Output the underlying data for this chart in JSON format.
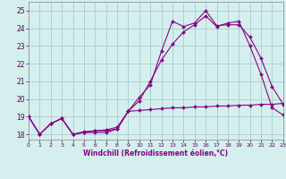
{
  "xlabel": "Windchill (Refroidissement éolien,°C)",
  "xlim": [
    0,
    23
  ],
  "ylim": [
    17.7,
    25.5
  ],
  "yticks": [
    18,
    19,
    20,
    21,
    22,
    23,
    24,
    25
  ],
  "xticks": [
    0,
    1,
    2,
    3,
    4,
    5,
    6,
    7,
    8,
    9,
    10,
    11,
    12,
    13,
    14,
    15,
    16,
    17,
    18,
    19,
    20,
    21,
    22,
    23
  ],
  "bg_color": "#d4efee",
  "grid_color": "#aacccc",
  "line_color": "#880088",
  "line1_x": [
    0,
    1,
    2,
    3,
    4,
    5,
    6,
    7,
    8,
    9,
    10,
    11,
    12,
    13,
    14,
    15,
    16,
    17,
    18,
    19,
    20,
    21,
    22,
    23
  ],
  "line1_y": [
    19.0,
    18.0,
    18.6,
    18.9,
    18.0,
    18.1,
    18.1,
    18.1,
    18.3,
    19.3,
    20.1,
    20.8,
    22.7,
    24.4,
    24.1,
    24.3,
    25.0,
    24.15,
    24.2,
    24.2,
    23.5,
    22.3,
    20.7,
    19.7
  ],
  "line2_x": [
    0,
    1,
    2,
    3,
    4,
    5,
    6,
    7,
    8,
    9,
    10,
    11,
    12,
    13,
    14,
    15,
    16,
    17,
    18,
    19,
    20,
    21,
    22,
    23
  ],
  "line2_y": [
    19.0,
    18.0,
    18.6,
    18.9,
    18.0,
    18.1,
    18.2,
    18.2,
    18.3,
    19.3,
    19.9,
    21.0,
    22.2,
    23.1,
    23.8,
    24.2,
    24.7,
    24.1,
    24.3,
    24.4,
    23.0,
    21.4,
    19.5,
    19.1
  ],
  "line3_x": [
    0,
    1,
    2,
    3,
    4,
    5,
    6,
    7,
    8,
    9,
    10,
    11,
    12,
    13,
    14,
    15,
    16,
    17,
    18,
    19,
    20,
    21,
    22,
    23
  ],
  "line3_y": [
    19.0,
    18.0,
    18.6,
    18.9,
    18.0,
    18.15,
    18.2,
    18.25,
    18.4,
    19.3,
    19.35,
    19.4,
    19.45,
    19.5,
    19.5,
    19.55,
    19.55,
    19.6,
    19.6,
    19.65,
    19.65,
    19.7,
    19.7,
    19.75
  ]
}
